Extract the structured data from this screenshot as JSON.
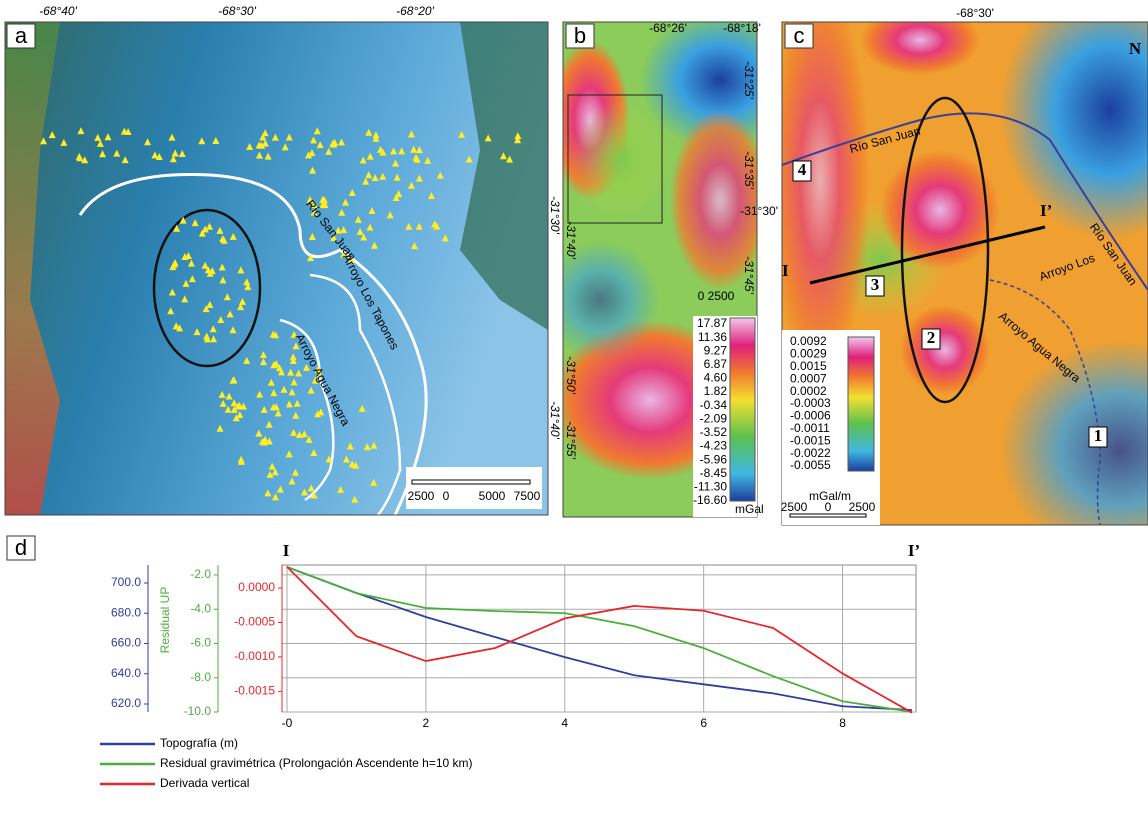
{
  "panel_a": {
    "label": "a",
    "lon_labels": [
      "-68°40'",
      "-68°30'",
      "-68°20'"
    ],
    "lat_labels": [
      "-31°30'",
      "-31°40'"
    ],
    "rivers": [
      "Río San Juan",
      "Arroyo Los Tapones",
      "Arroyo Agua Negra"
    ],
    "scale": [
      "2500",
      "0",
      "5000",
      "7500"
    ]
  },
  "panel_b": {
    "label": "b",
    "lon_labels": [
      "-68°26'",
      "-68°18'"
    ],
    "lat_labels": [
      "-31°25'",
      "-31°35'",
      "-31°45'",
      "-31°50'",
      "-31°55'",
      "-31°40'"
    ],
    "scale": "0 2500",
    "colorbar": [
      "17.87",
      "11.36",
      "9.27",
      "6.87",
      "4.60",
      "1.82",
      "-0.34",
      "-2.09",
      "-3.52",
      "-4.23",
      "-5.96",
      "-8.45",
      "-11.30",
      "-16.60"
    ],
    "unit": "mGal"
  },
  "panel_c": {
    "label": "c",
    "lon_label": "-68°30'",
    "lat_label": "-31°30'",
    "rivers": [
      "Río San Juan",
      "Río San Juan",
      "Arroyo Los",
      "Arroyo Agua Negra"
    ],
    "profile": [
      "I",
      "I’"
    ],
    "zones": [
      "1",
      "2",
      "3",
      "4"
    ],
    "north": "N",
    "colorbar": [
      "0.0092",
      "0.0029",
      "0.0015",
      "0.0007",
      "0.0002",
      "-0.0003",
      "-0.0006",
      "-0.0011",
      "-0.0015",
      "-0.0022",
      "-0.0055"
    ],
    "unit": "mGal/m",
    "scale": [
      "2500",
      "0",
      "2500"
    ]
  },
  "chart_data": {
    "type": "line",
    "label": "d",
    "profile_start": "I",
    "profile_end": "I’",
    "y2_label": "Residual UP",
    "x": [
      0,
      1,
      2,
      3,
      4,
      5,
      6,
      7,
      8,
      9
    ],
    "xlim": [
      0,
      9
    ],
    "xticks": [
      {
        "value": 0,
        "label": "-0"
      },
      2,
      4,
      6,
      8
    ],
    "ylim": [
      614.7,
      711.9
    ],
    "yticks": [
      {
        "value": 620,
        "label": "620.0"
      },
      {
        "value": 640,
        "label": "640.0"
      },
      {
        "value": 660,
        "label": "660.0"
      },
      {
        "value": 680,
        "label": "680.0"
      },
      {
        "value": 700,
        "label": "700.0"
      }
    ],
    "y2lim": [
      -10,
      -1.42
    ],
    "y2ticks": [
      {
        "value": -10,
        "label": "-10.0"
      },
      {
        "value": -8,
        "label": "-8.0"
      },
      {
        "value": -6,
        "label": "-6.0"
      },
      {
        "value": -4,
        "label": "-4.0"
      },
      {
        "value": -2,
        "label": "-2.0"
      }
    ],
    "y3lim": [
      -0.0018,
      0.000335
    ],
    "y3ticks": [
      -0.0015,
      {
        "value": -0.001,
        "label": "-0.0010"
      },
      -0.0005,
      {
        "value": 0,
        "label": "0.0000"
      }
    ],
    "grid": true,
    "series": [
      {
        "name": "Topografía (m)",
        "color": "#2e3f9e",
        "axis": "y",
        "values": [
          710.6,
          693.4,
          677.5,
          664.2,
          651,
          639,
          633,
          627,
          618.5,
          616
        ]
      },
      {
        "name": "Residual gravimétrica  (Prolongación Ascendente h=10 km)",
        "color": "#4caf3c",
        "axis": "y2",
        "values": [
          -1.54,
          -3.06,
          -3.93,
          -4.11,
          -4.23,
          -4.99,
          -6.27,
          -7.91,
          -9.37,
          -10
        ]
      },
      {
        "name": "Derivada vertical",
        "color": "#e8262a",
        "axis": "y3",
        "values": [
          0.00031,
          -0.0007,
          -0.00106,
          -0.00087,
          -0.00044,
          -0.00026,
          -0.00033,
          -0.00058,
          -0.00124,
          -0.00181
        ]
      }
    ]
  }
}
